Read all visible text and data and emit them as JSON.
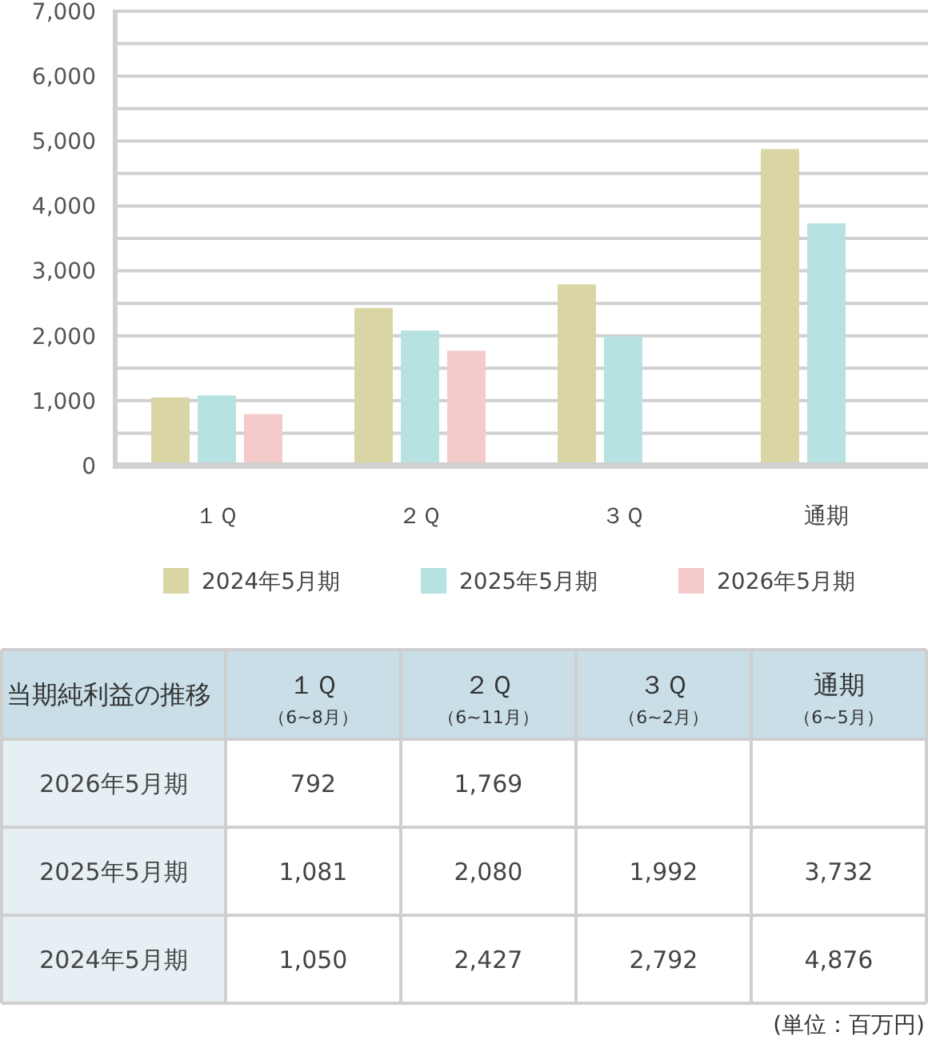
{
  "chart_data": {
    "type": "bar",
    "title": "当期純利益の推移",
    "categories": [
      "１Ｑ",
      "２Ｑ",
      "３Ｑ",
      "通期"
    ],
    "series": [
      {
        "name": "2024年5月期",
        "color": "#d9d5a5",
        "values": [
          1050,
          2427,
          2792,
          4876
        ],
        "value_labels": [
          "1,050",
          "2,427",
          "2,792",
          "4,876"
        ]
      },
      {
        "name": "2025年5月期",
        "color": "#b6e2e1",
        "values": [
          1081,
          2080,
          1992,
          3732
        ],
        "value_labels": [
          "1,081",
          "2,080",
          "1,992",
          "3,732"
        ]
      },
      {
        "name": "2026年5月期",
        "color": "#f4cacb",
        "values": [
          792,
          1769,
          null,
          null
        ],
        "value_labels": [
          "792",
          "1,769",
          null,
          null
        ]
      }
    ],
    "ylim": [
      0,
      7000
    ],
    "yticks": [
      {
        "value": 0,
        "label": "0"
      },
      {
        "value": 500,
        "label": null
      },
      {
        "value": 1000,
        "label": "1,000"
      },
      {
        "value": 1500,
        "label": null
      },
      {
        "value": 2000,
        "label": "2,000"
      },
      {
        "value": 2500,
        "label": null
      },
      {
        "value": 3000,
        "label": "3,000"
      },
      {
        "value": 3500,
        "label": null
      },
      {
        "value": 4000,
        "label": "4,000"
      },
      {
        "value": 4500,
        "label": null
      },
      {
        "value": 5000,
        "label": "5,000"
      },
      {
        "value": 5500,
        "label": null
      },
      {
        "value": 6000,
        "label": "6,000"
      },
      {
        "value": 6500,
        "label": null
      },
      {
        "value": 7000,
        "label": "7,000"
      }
    ],
    "grid": "y",
    "legend": "bottom",
    "annotations": [
      "（6~8月）",
      "（6~11月）",
      "（6~2月）",
      "（6~5月）",
      "(単位：百万円)"
    ]
  }
}
